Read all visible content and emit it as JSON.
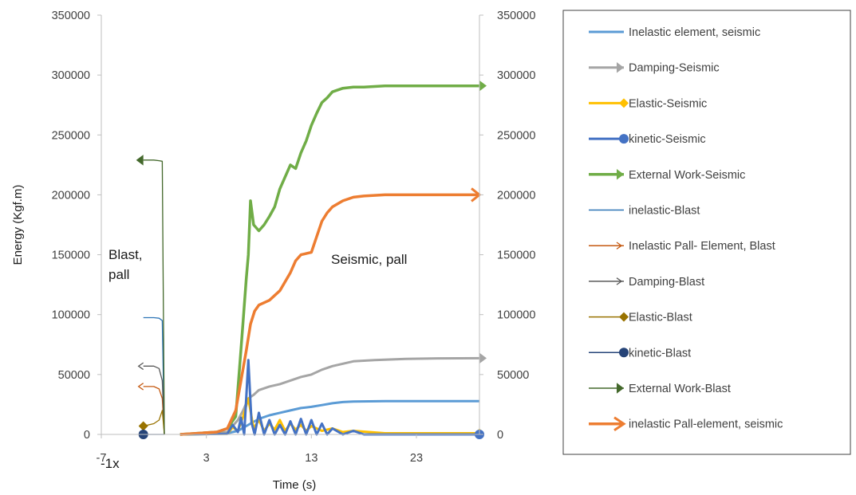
{
  "chart_data": {
    "type": "line",
    "title": "",
    "xlabel": "Time (s)",
    "ylabel": "Energy (Kgf.m)",
    "xlim": [
      -7,
      29
    ],
    "ylim": [
      0,
      350000
    ],
    "x_ticks": [
      "-7",
      "3",
      "13",
      "23"
    ],
    "y_ticks_left": [
      "0",
      "50000",
      "100000",
      "150000",
      "200000",
      "250000",
      "300000",
      "350000"
    ],
    "y_ticks_right": [
      "0",
      "50000",
      "100000",
      "150000",
      "200000",
      "250000",
      "300000",
      "350000"
    ],
    "x_axis_note": "-1x",
    "annotations": {
      "blast_line1": "Blast,",
      "blast_line2": "pall",
      "seismic": "Seismic, pall"
    },
    "legend_position": "right",
    "grid": false,
    "series": [
      {
        "name": "Inelastic element, seismic",
        "color": "#5B9BD5",
        "marker": "none",
        "x": [
          0.5,
          5,
          6,
          7,
          8,
          9,
          10,
          11,
          12,
          13,
          14,
          15,
          16,
          17,
          20,
          25,
          29
        ],
        "y": [
          0,
          1000,
          3000,
          8000,
          13000,
          16000,
          18000,
          20000,
          22000,
          23000,
          24500,
          26000,
          27000,
          27500,
          27800,
          27800,
          27800
        ]
      },
      {
        "name": "Damping-Seismic",
        "color": "#A5A5A5",
        "marker": "arrow",
        "x": [
          0.5,
          5,
          6,
          6.5,
          7,
          7.5,
          8,
          9,
          10,
          11,
          12,
          13,
          14,
          15,
          16,
          17,
          19,
          22,
          25,
          29
        ],
        "y": [
          0,
          2000,
          12000,
          20000,
          30000,
          33000,
          37000,
          40000,
          42000,
          45000,
          48000,
          50000,
          54000,
          57000,
          59000,
          61000,
          62000,
          63000,
          63500,
          63600
        ]
      },
      {
        "name": "Elastic-Seismic",
        "color": "#FFC000",
        "marker": "diamond",
        "x": [
          0.5,
          5,
          5.5,
          6,
          6.5,
          7,
          7.5,
          8,
          8.5,
          9,
          9.5,
          10,
          10.5,
          11,
          11.5,
          12,
          12.5,
          13,
          14,
          15,
          16,
          17,
          20,
          29
        ],
        "y": [
          0,
          500,
          6000,
          3000,
          15000,
          30000,
          5000,
          12000,
          3000,
          9000,
          4000,
          12000,
          3000,
          9000,
          4000,
          8000,
          3000,
          7000,
          3000,
          5000,
          2000,
          3000,
          1000,
          1000
        ]
      },
      {
        "name": "kinetic-Seismic",
        "color": "#4472C4",
        "marker": "circle",
        "x": [
          0.5,
          5,
          5.5,
          6,
          6.3,
          6.6,
          7,
          7.3,
          7.6,
          8,
          8.5,
          9,
          9.5,
          10,
          10.5,
          11,
          11.5,
          12,
          12.5,
          13,
          13.5,
          14,
          14.5,
          15,
          16,
          17,
          18,
          20,
          29
        ],
        "y": [
          0,
          500,
          8000,
          2000,
          14000,
          0,
          62000,
          10000,
          0,
          18000,
          0,
          12000,
          0,
          8000,
          0,
          11000,
          0,
          13000,
          0,
          12000,
          0,
          9000,
          0,
          5000,
          0,
          3000,
          0,
          0,
          0
        ]
      },
      {
        "name": "External Work-Seismic",
        "color": "#70AD47",
        "marker": "arrow",
        "x": [
          0.5,
          4,
          5,
          5.8,
          6.2,
          6.5,
          6.8,
          7,
          7.2,
          7.5,
          8,
          8.5,
          9,
          9.5,
          10,
          10.5,
          11,
          11.5,
          12,
          12.5,
          13,
          13.5,
          14,
          14.5,
          15,
          16,
          17,
          18,
          20,
          29
        ],
        "y": [
          0,
          2000,
          5000,
          15000,
          60000,
          95000,
          130000,
          150000,
          195000,
          175000,
          170000,
          175000,
          182000,
          190000,
          205000,
          215000,
          225000,
          222000,
          235000,
          245000,
          258000,
          268000,
          277000,
          281000,
          286000,
          289000,
          290000,
          290000,
          291000,
          291000
        ]
      },
      {
        "name": "inelastic-Blast",
        "color": "#2E75B6",
        "marker": "none",
        "x": [
          -3,
          -2,
          -1.5,
          -1.2,
          -1
        ],
        "y": [
          97500,
          97500,
          97000,
          95000,
          0
        ]
      },
      {
        "name": "Inelastic Pall- Element, Blast",
        "color": "#C55A11",
        "marker": "open-arrow",
        "x": [
          -3,
          -2,
          -1.5,
          -1.2,
          -1
        ],
        "y": [
          40000,
          40000,
          38000,
          30000,
          0
        ]
      },
      {
        "name": "Damping-Blast",
        "color": "#595959",
        "marker": "open-arrow",
        "x": [
          -3,
          -2,
          -1.5,
          -1.2,
          -1
        ],
        "y": [
          57000,
          57000,
          55000,
          45000,
          0
        ]
      },
      {
        "name": "Elastic-Blast",
        "color": "#997300",
        "marker": "diamond",
        "x": [
          -3,
          -2,
          -1.5,
          -1.2,
          -1
        ],
        "y": [
          7000,
          9000,
          12000,
          20000,
          0
        ]
      },
      {
        "name": "kinetic-Blast",
        "color": "#264478",
        "marker": "circle",
        "x": [
          -3,
          -2,
          -1.5,
          -1.2,
          -1
        ],
        "y": [
          0,
          0,
          0,
          0,
          0
        ]
      },
      {
        "name": "External Work-Blast",
        "color": "#43682B",
        "marker": "arrow",
        "x": [
          -3,
          -2,
          -1.5,
          -1.2,
          -1
        ],
        "y": [
          229000,
          229000,
          228500,
          228000,
          0
        ]
      },
      {
        "name": "inelastic Pall-element, seismic",
        "color": "#ED7D31",
        "marker": "thick-arrow",
        "x": [
          0.5,
          4,
          5,
          5.8,
          6.3,
          6.8,
          7.2,
          7.6,
          8,
          9,
          10,
          11,
          11.5,
          12,
          12.5,
          13,
          13.5,
          14,
          14.5,
          15,
          16,
          17,
          18,
          20,
          22,
          29
        ],
        "y": [
          0,
          2000,
          5000,
          20000,
          45000,
          70000,
          92000,
          103000,
          108000,
          112000,
          120000,
          135000,
          145000,
          150000,
          151000,
          152000,
          165000,
          178000,
          185000,
          190000,
          195000,
          198000,
          199000,
          200000,
          200000,
          200000
        ]
      }
    ]
  }
}
